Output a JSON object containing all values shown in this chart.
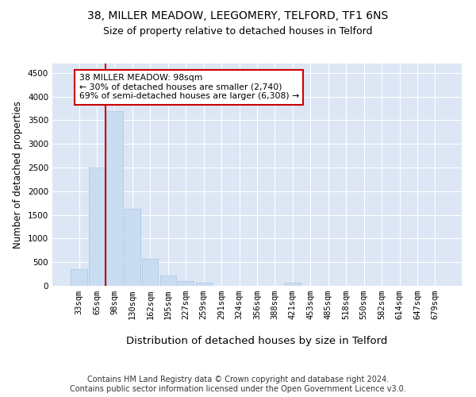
{
  "title1": "38, MILLER MEADOW, LEEGOMERY, TELFORD, TF1 6NS",
  "title2": "Size of property relative to detached houses in Telford",
  "xlabel": "Distribution of detached houses by size in Telford",
  "ylabel": "Number of detached properties",
  "footnote": "Contains HM Land Registry data © Crown copyright and database right 2024.\nContains public sector information licensed under the Open Government Licence v3.0.",
  "categories": [
    "33sqm",
    "65sqm",
    "98sqm",
    "130sqm",
    "162sqm",
    "195sqm",
    "227sqm",
    "259sqm",
    "291sqm",
    "324sqm",
    "356sqm",
    "388sqm",
    "421sqm",
    "453sqm",
    "485sqm",
    "518sqm",
    "550sqm",
    "582sqm",
    "614sqm",
    "647sqm",
    "679sqm"
  ],
  "values": [
    350,
    2500,
    3700,
    1625,
    575,
    225,
    100,
    60,
    0,
    0,
    0,
    0,
    60,
    0,
    0,
    0,
    0,
    0,
    0,
    0,
    0
  ],
  "bar_color": "#c9ddf2",
  "bar_edge_color": "#aac4e0",
  "property_line_color": "#cc0000",
  "annotation_text": "38 MILLER MEADOW: 98sqm\n← 30% of detached houses are smaller (2,740)\n69% of semi-detached houses are larger (6,308) →",
  "annotation_box_color": "#ffffff",
  "annotation_box_edge_color": "#cc0000",
  "ylim": [
    0,
    4700
  ],
  "yticks": [
    0,
    500,
    1000,
    1500,
    2000,
    2500,
    3000,
    3500,
    4000,
    4500
  ],
  "background_color": "#dce6f5",
  "grid_color": "#ffffff",
  "title1_fontsize": 10,
  "title2_fontsize": 9,
  "xlabel_fontsize": 9.5,
  "ylabel_fontsize": 8.5,
  "tick_fontsize": 7.5,
  "annotation_fontsize": 7.8,
  "footnote_fontsize": 7.0
}
